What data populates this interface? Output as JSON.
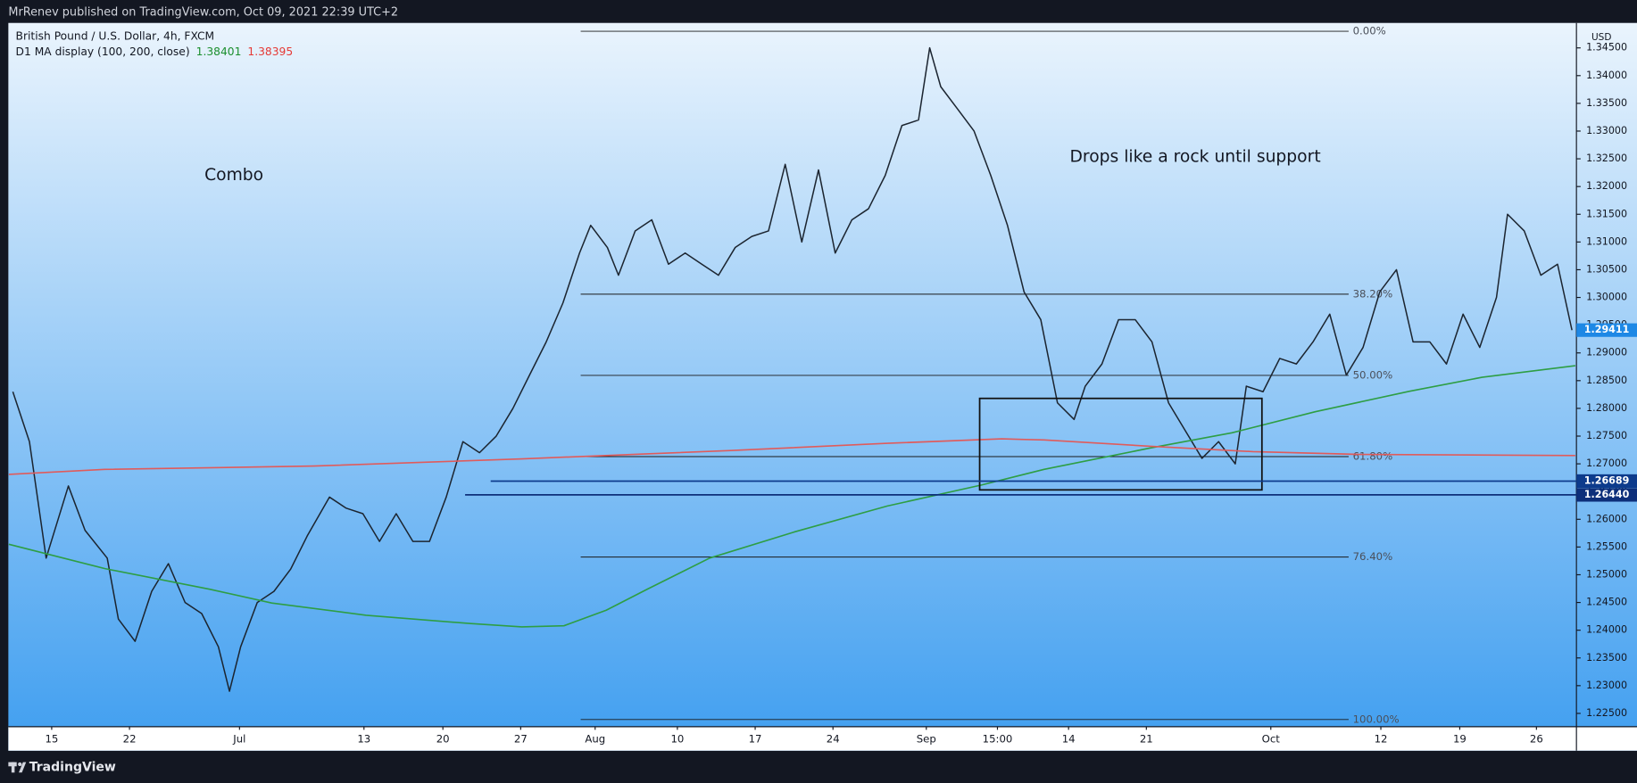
{
  "chart_data": {
    "type": "line",
    "header": "MrRenev published on TradingView.com, Oct 09, 2021 22:39 UTC+2",
    "title": "British Pound / U.S. Dollar, 4h, FXCM",
    "indicator": {
      "label": "D1 MA display (100, 200, close)",
      "values": [
        {
          "text": "1.38401",
          "color": "#1b8f2e"
        },
        {
          "text": "1.38395",
          "color": "#e53935"
        }
      ]
    },
    "currency": "USD",
    "footer": "TradingView",
    "annotations": [
      {
        "text": "Combo",
        "x": 16.4,
        "y": 1.322
      },
      {
        "text": "Drops like a rock until support",
        "x": 102.9,
        "y": 1.3253
      }
    ],
    "xlim": [
      -3.9,
      137.2
    ],
    "ylim": [
      1.2226,
      1.3495
    ],
    "xticks": [
      {
        "value": 0,
        "label": "15"
      },
      {
        "value": 7,
        "label": "22"
      },
      {
        "value": 16.9,
        "label": "Jul"
      },
      {
        "value": 28.1,
        "label": "13"
      },
      {
        "value": 35.2,
        "label": "20"
      },
      {
        "value": 42.2,
        "label": "27"
      },
      {
        "value": 48.9,
        "label": "Aug"
      },
      {
        "value": 56.3,
        "label": "10"
      },
      {
        "value": 63.3,
        "label": "17"
      },
      {
        "value": 70.3,
        "label": "24"
      },
      {
        "value": 78.7,
        "label": "Sep"
      },
      {
        "value": 85.1,
        "label": "15:00"
      },
      {
        "value": 91.5,
        "label": "14"
      },
      {
        "value": 98.5,
        "label": "21"
      },
      {
        "value": 109.7,
        "label": "Oct"
      },
      {
        "value": 119.6,
        "label": "12"
      },
      {
        "value": 126.7,
        "label": "19"
      },
      {
        "value": 133.6,
        "label": "26"
      }
    ],
    "yticks": [
      {
        "value": 1.225,
        "label": "1.22500"
      },
      {
        "value": 1.23,
        "label": "1.23000"
      },
      {
        "value": 1.235,
        "label": "1.23500"
      },
      {
        "value": 1.24,
        "label": "1.24000"
      },
      {
        "value": 1.245,
        "label": "1.24500"
      },
      {
        "value": 1.25,
        "label": "1.25000"
      },
      {
        "value": 1.255,
        "label": "1.25500"
      },
      {
        "value": 1.26,
        "label": "1.26000"
      },
      {
        "value": 1.265,
        "label": "1.26500"
      },
      {
        "value": 1.27,
        "label": "1.27000"
      },
      {
        "value": 1.275,
        "label": "1.27500"
      },
      {
        "value": 1.28,
        "label": "1.28000"
      },
      {
        "value": 1.285,
        "label": "1.28500"
      },
      {
        "value": 1.29,
        "label": "1.29000"
      },
      {
        "value": 1.295,
        "label": "1.29500"
      },
      {
        "value": 1.3,
        "label": "1.30000"
      },
      {
        "value": 1.305,
        "label": "1.30500"
      },
      {
        "value": 1.31,
        "label": "1.31000"
      },
      {
        "value": 1.315,
        "label": "1.31500"
      },
      {
        "value": 1.32,
        "label": "1.32000"
      },
      {
        "value": 1.325,
        "label": "1.32500"
      },
      {
        "value": 1.33,
        "label": "1.33000"
      },
      {
        "value": 1.335,
        "label": "1.33500"
      },
      {
        "value": 1.34,
        "label": "1.34000"
      },
      {
        "value": 1.345,
        "label": "1.34500"
      }
    ],
    "grid": false,
    "series": [
      {
        "color": "#1c2530",
        "x": [
          -3.5,
          -2,
          -0.5,
          1.5,
          3,
          5,
          6,
          7.5,
          9,
          10.5,
          12,
          13.5,
          15,
          16,
          17,
          18.5,
          20,
          21.5,
          23,
          25,
          26.5,
          28,
          29.5,
          31,
          32.5,
          34,
          35.5,
          37,
          38.5,
          40,
          41.5,
          43,
          44.5,
          46,
          47.5,
          48.5,
          50,
          51,
          52.5,
          54,
          55.5,
          57,
          58.5,
          60,
          61.5,
          63,
          64.5,
          66,
          67.5,
          69,
          70.5,
          72,
          73.5,
          75,
          76.5,
          78,
          79,
          80,
          81.5,
          83,
          84.5,
          86,
          87.5,
          89,
          90.5,
          92,
          93,
          94.5,
          96,
          97.5,
          99,
          100.5,
          102,
          103.5,
          105,
          106.5,
          107.5,
          109,
          110.5,
          112,
          113.5,
          115,
          116.5,
          118,
          119.5,
          121,
          122.5,
          124,
          125.5,
          127,
          128.5,
          130,
          131,
          132.5,
          134,
          135.5,
          136.8
        ],
        "values": [
          1.283,
          1.274,
          1.253,
          1.266,
          1.258,
          1.253,
          1.242,
          1.238,
          1.247,
          1.252,
          1.245,
          1.243,
          1.237,
          1.229,
          1.237,
          1.245,
          1.247,
          1.251,
          1.257,
          1.264,
          1.262,
          1.261,
          1.256,
          1.261,
          1.256,
          1.256,
          1.264,
          1.274,
          1.272,
          1.275,
          1.28,
          1.286,
          1.292,
          1.299,
          1.308,
          1.313,
          1.309,
          1.304,
          1.312,
          1.314,
          1.306,
          1.308,
          1.306,
          1.304,
          1.309,
          1.311,
          1.312,
          1.324,
          1.31,
          1.323,
          1.308,
          1.314,
          1.316,
          1.322,
          1.331,
          1.332,
          1.345,
          1.338,
          1.334,
          1.33,
          1.322,
          1.313,
          1.301,
          1.296,
          1.281,
          1.278,
          1.284,
          1.288,
          1.296,
          1.296,
          1.292,
          1.281,
          1.276,
          1.271,
          1.274,
          1.27,
          1.284,
          1.283,
          1.289,
          1.288,
          1.292,
          1.297,
          1.286,
          1.291,
          1.301,
          1.305,
          1.292,
          1.292,
          1.288,
          1.297,
          1.291,
          1.3,
          1.315,
          1.312,
          1.304,
          1.306,
          1.2941
        ]
      },
      {
        "color": "#2e9e44",
        "x": [
          -3.85,
          4.8,
          14.2,
          19.8,
          28.3,
          37.7,
          42.3,
          46.1,
          49.9,
          53.6,
          59.2,
          66.8,
          75.2,
          83.7,
          89.3,
          98.7,
          106.2,
          113.7,
          122.2,
          128.7,
          137.1
        ],
        "values": [
          1.2555,
          1.2511,
          1.2474,
          1.2449,
          1.2427,
          1.2412,
          1.2406,
          1.2408,
          1.2436,
          1.2474,
          1.253,
          1.2577,
          1.2624,
          1.2662,
          1.269,
          1.2728,
          1.2756,
          1.2794,
          1.2831,
          1.2856,
          1.2877
        ]
      },
      {
        "color": "#e05b5b",
        "x": [
          -3.85,
          4.8,
          23.6,
          42.3,
          61.1,
          75.2,
          85.5,
          89.3,
          98.7,
          108.1,
          117.5,
          137.1
        ],
        "values": [
          1.2681,
          1.269,
          1.2696,
          1.2709,
          1.2724,
          1.2737,
          1.2745,
          1.2743,
          1.2732,
          1.2722,
          1.2717,
          1.2715
        ]
      }
    ],
    "fib": {
      "high": 1.348,
      "low": 1.2239,
      "x": [
        47.6,
        116.7
      ],
      "levels": [
        {
          "value": 0,
          "label": "0.00%"
        },
        {
          "value": 38.2,
          "label": "38.20%"
        },
        {
          "value": 50,
          "label": "50.00%"
        },
        {
          "value": 61.8,
          "label": "61.80%"
        },
        {
          "value": 76.4,
          "label": "76.40%"
        },
        {
          "value": 100,
          "label": "100.00%"
        }
      ]
    },
    "hlines": [
      {
        "price": {
          "value": 1.26689,
          "label": "1.26689"
        },
        "from": 39.5,
        "color": "#0d3b8c"
      },
      {
        "price": {
          "value": 1.2644,
          "label": "1.26440"
        },
        "from": 37.2,
        "color": "#0d2f7a"
      }
    ],
    "last_price": {
      "value": 1.29411,
      "label": "1.29411",
      "color": "#1e88e5"
    },
    "box": {
      "top": 1.2818,
      "bottom": 1.2653,
      "x": [
        83.5,
        108.9
      ]
    }
  }
}
